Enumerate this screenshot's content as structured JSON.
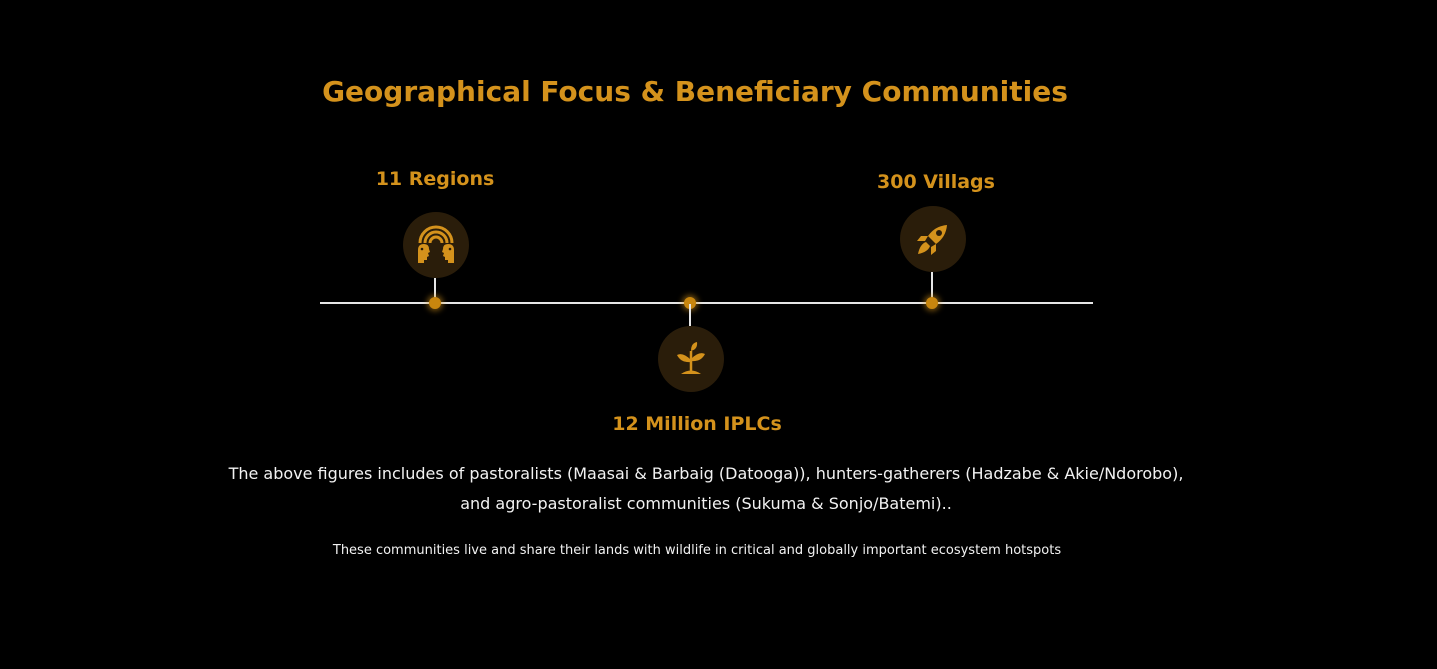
{
  "title": "Geographical Focus & Beneficiary Communities",
  "milestones": [
    {
      "label": "11 Regions",
      "icon": "community-rainbow-icon"
    },
    {
      "label": "12 Million IPLCs",
      "icon": "sprout-plant-icon"
    },
    {
      "label": "300 Villags",
      "icon": "rocket-icon"
    }
  ],
  "description": {
    "line1": "The above  figures includes of pastoralists (Maasai & Barbaig (Datooga)), hunters-gatherers (Hadzabe & Akie/Ndorobo),",
    "line2": "and agro-pastoralist communities (Sukuma & Sonjo/Batemi).."
  },
  "note": "These communities live and share their lands with wildlife in critical and globally important ecosystem hotspots",
  "colors": {
    "accent": "#d4921c",
    "background": "#000000",
    "icon_bg": "#2a1d0a",
    "line": "#e6e6e6",
    "text": "#f2f2f2"
  }
}
